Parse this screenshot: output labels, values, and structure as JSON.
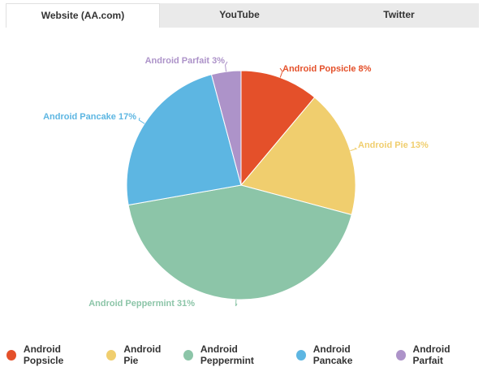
{
  "tabs": [
    {
      "label": "Website (AA.com)",
      "active": true
    },
    {
      "label": "YouTube",
      "active": false
    },
    {
      "label": "Twitter",
      "active": false
    }
  ],
  "colors": {
    "popsicle": "#e4502a",
    "pie": "#f0ce6e",
    "peppermint": "#8cc5a8",
    "pancake": "#5db6e2",
    "parfait": "#ad93c9"
  },
  "chart_data": {
    "type": "pie",
    "title": "",
    "slices": [
      {
        "name": "Android Popsicle",
        "value": 8,
        "label": "Android Popsicle 8%",
        "color": "#e4502a"
      },
      {
        "name": "Android Pie",
        "value": 13,
        "label": "Android Pie 13%",
        "color": "#f0ce6e"
      },
      {
        "name": "Android Peppermint",
        "value": 31,
        "label": "Android Peppermint 31%",
        "color": "#8cc5a8"
      },
      {
        "name": "Android Pancake",
        "value": 17,
        "label": "Android Pancake 17%",
        "color": "#5db6e2"
      },
      {
        "name": "Android Parfait",
        "value": 3,
        "label": "Android Parfait 3%",
        "color": "#ad93c9"
      }
    ],
    "legend_position": "bottom"
  }
}
